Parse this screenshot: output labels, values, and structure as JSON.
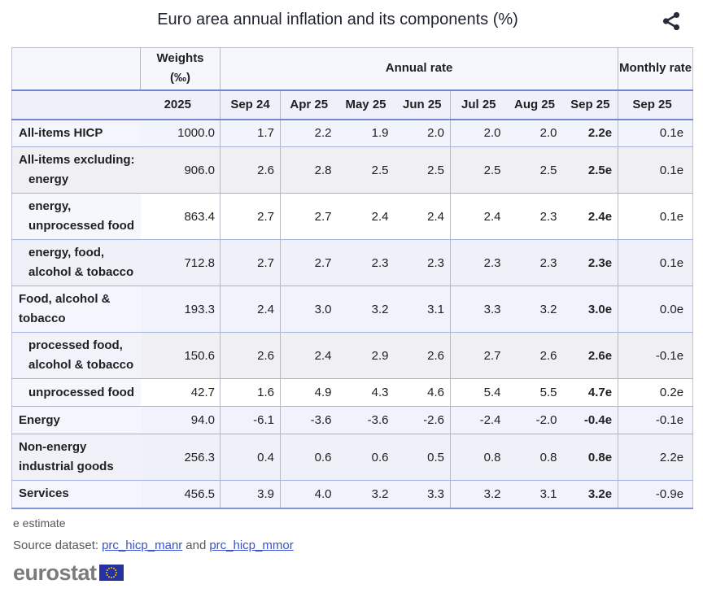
{
  "title": "Euro area annual inflation and its components (%)",
  "colors": {
    "accent_header_border": "#7286ce",
    "row_border": "#a3b0e0",
    "grid_border": "#b7b8c2",
    "link": "#3b53c4",
    "note_text": "#54595d",
    "logo_gray": "#7b7b7b",
    "flag_blue": "#27339c",
    "flag_star_yellow": "#ffcc00"
  },
  "table": {
    "header": {
      "weights_label": "Weights",
      "weights_unit": "(‰)",
      "annual_rate_label": "Annual rate",
      "monthly_rate_label": "Monthly rate",
      "year": "2025",
      "months": [
        "Sep 24",
        "Apr 25",
        "May 25",
        "Jun 25",
        "Jul 25",
        "Aug 25",
        "Sep 25"
      ],
      "monthly_month": "Sep 25"
    },
    "rows": [
      {
        "label_lines": [
          {
            "text": "All-items HICP",
            "indent": false
          }
        ],
        "weight": "1000.0",
        "values": [
          "1.7",
          "2.2",
          "1.9",
          "2.0",
          "2.0",
          "2.0"
        ],
        "sep25": "2.2e",
        "monthly": "0.1e",
        "bg": "#f2f4fb",
        "label_bg": "#f5f6fd"
      },
      {
        "label_lines": [
          {
            "text": "All-items excluding:",
            "indent": false
          },
          {
            "text": "energy",
            "indent": true
          }
        ],
        "weight": "906.0",
        "values": [
          "2.6",
          "2.8",
          "2.5",
          "2.5",
          "2.5",
          "2.5"
        ],
        "sep25": "2.5e",
        "monthly": "0.1e",
        "bg": "#f0f0f3",
        "label_bg": "#f0f0f3"
      },
      {
        "label_lines": [
          {
            "text": "energy,",
            "indent": true
          },
          {
            "text": "unprocessed food",
            "indent": true
          }
        ],
        "weight": "863.4",
        "values": [
          "2.7",
          "2.7",
          "2.4",
          "2.4",
          "2.4",
          "2.3"
        ],
        "sep25": "2.4e",
        "monthly": "0.1e",
        "bg": "#ffffff",
        "label_bg": "#f6f6fd"
      },
      {
        "label_lines": [
          {
            "text": "energy, food,",
            "indent": true
          },
          {
            "text": "alcohol & tobacco",
            "indent": true
          }
        ],
        "weight": "712.8",
        "values": [
          "2.7",
          "2.7",
          "2.3",
          "2.3",
          "2.3",
          "2.3"
        ],
        "sep25": "2.3e",
        "monthly": "0.1e",
        "bg": "#eff1f8",
        "label_bg": "#eff1f8"
      },
      {
        "label_lines": [
          {
            "text": "Food, alcohol &",
            "indent": false
          },
          {
            "text": "tobacco",
            "indent": false
          }
        ],
        "weight": "193.3",
        "values": [
          "2.4",
          "3.0",
          "3.2",
          "3.1",
          "3.3",
          "3.2"
        ],
        "sep25": "3.0e",
        "monthly": "0.0e",
        "bg": "#f0f3fc",
        "label_bg": "#f4f5fd"
      },
      {
        "label_lines": [
          {
            "text": "processed food,",
            "indent": true
          },
          {
            "text": "alcohol & tobacco",
            "indent": true
          }
        ],
        "weight": "150.6",
        "values": [
          "2.6",
          "2.4",
          "2.9",
          "2.6",
          "2.7",
          "2.6"
        ],
        "sep25": "2.6e",
        "monthly": "-0.1e",
        "bg": "#f0f0f3",
        "label_bg": "#f2f2fb"
      },
      {
        "label_lines": [
          {
            "text": "unprocessed food",
            "indent": true
          }
        ],
        "weight": "42.7",
        "values": [
          "1.6",
          "4.9",
          "4.3",
          "4.6",
          "5.4",
          "5.5"
        ],
        "sep25": "4.7e",
        "monthly": "0.2e",
        "bg": "#ffffff",
        "label_bg": "#f6f6fd"
      },
      {
        "label_lines": [
          {
            "text": "Energy",
            "indent": false
          }
        ],
        "weight": "94.0",
        "values": [
          "-6.1",
          "-3.6",
          "-3.6",
          "-2.6",
          "-2.4",
          "-2.0"
        ],
        "sep25": "-0.4e",
        "monthly": "-0.1e",
        "bg": "#f0f3fc",
        "label_bg": "#f4f5fd"
      },
      {
        "label_lines": [
          {
            "text": "Non-energy",
            "indent": false
          },
          {
            "text": "industrial goods",
            "indent": false
          }
        ],
        "weight": "256.3",
        "values": [
          "0.4",
          "0.6",
          "0.6",
          "0.5",
          "0.8",
          "0.8"
        ],
        "sep25": "0.8e",
        "monthly": "2.2e",
        "bg": "#eff1f8",
        "label_bg": "#f0f1f9"
      },
      {
        "label_lines": [
          {
            "text": "Services",
            "indent": false
          }
        ],
        "weight": "456.5",
        "values": [
          "3.9",
          "4.0",
          "3.2",
          "3.3",
          "3.2",
          "3.1"
        ],
        "sep25": "3.2e",
        "monthly": "-0.9e",
        "bg": "#f0f3fc",
        "label_bg": "#f4f5fd"
      }
    ]
  },
  "footer": {
    "estimate_note": "e estimate",
    "source_prefix": "Source dataset:",
    "link_manr": "prc_hicp_manr",
    "link_join": "and",
    "link_mmor": "prc_hicp_mmor",
    "logo_text": "eurostat"
  }
}
